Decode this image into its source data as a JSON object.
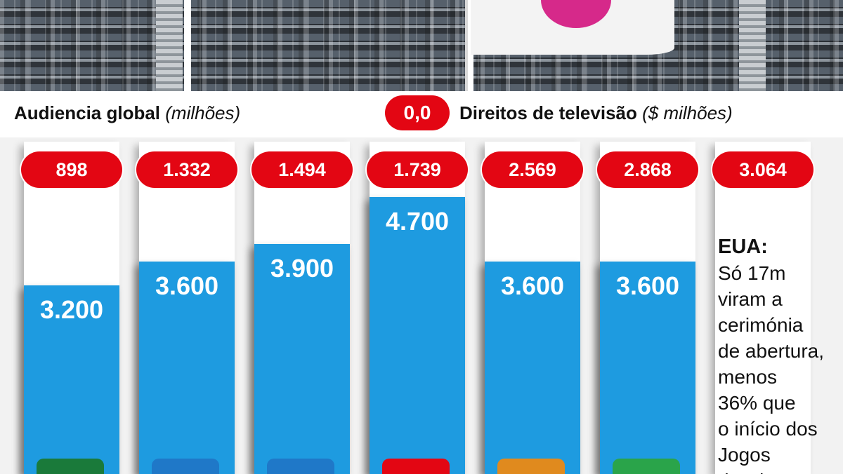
{
  "header": {
    "left_title": "Audiencia global",
    "left_unit": "(milhões)",
    "legend_value": "0,0",
    "right_title": "Direitos de televisão",
    "right_unit": "($ milhões)"
  },
  "note": {
    "title": "EUA:",
    "body": "Só 17m\nviram a\ncerimónia\nde abertura,\nmenos\n36% que\no início dos\nJogos\nde Rio"
  },
  "colors": {
    "bar": "#1e9be0",
    "pill": "#e30613",
    "panel": "#f2f2f2"
  },
  "chart_data": {
    "type": "bar",
    "ylim": [
      0,
      5000
    ],
    "series": [
      {
        "name": "Audiencia global",
        "values": [
          3200,
          3600,
          3900,
          4700,
          3600,
          3600,
          null
        ]
      },
      {
        "name": "Direitos de televisão",
        "values": [
          898,
          1332,
          1494,
          1739,
          2569,
          2868,
          3064
        ]
      }
    ],
    "value_labels": [
      "3.200",
      "3.600",
      "3.900",
      "4.700",
      "3.600",
      "3.600"
    ],
    "rights_labels": [
      "898",
      "1.332",
      "1.494",
      "1.739",
      "2.569",
      "2.868",
      "3.064"
    ]
  }
}
